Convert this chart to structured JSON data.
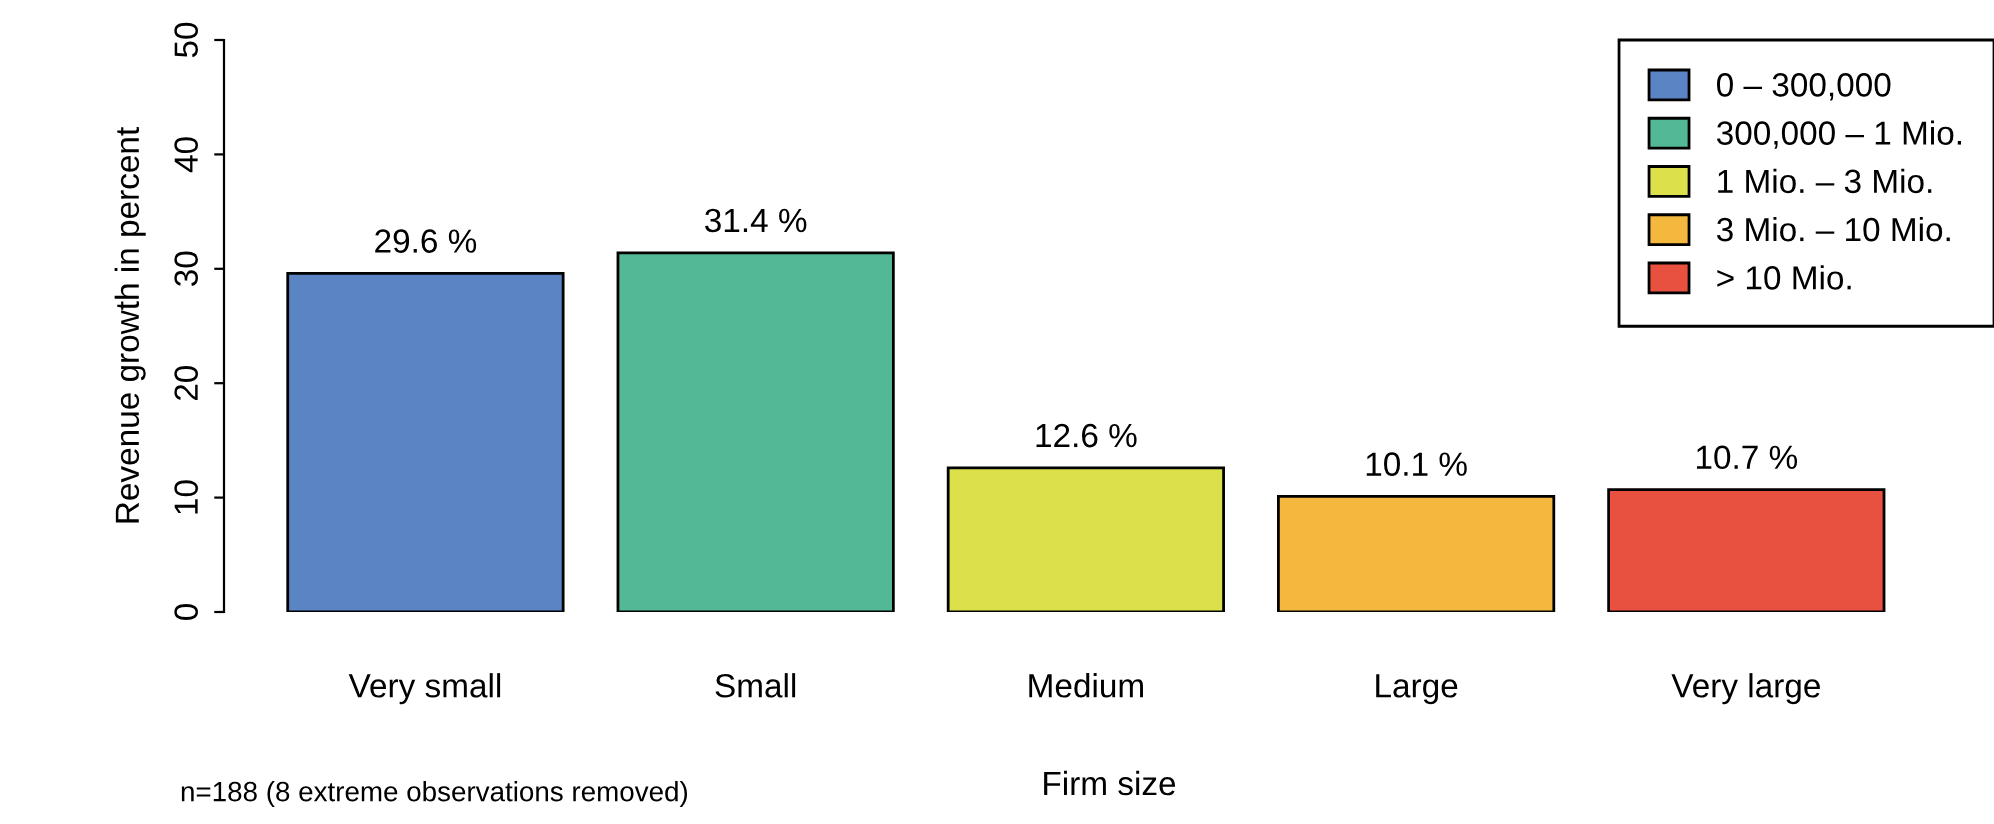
{
  "chart_data": {
    "type": "bar",
    "xlabel": "Firm size",
    "ylabel": "Revenue growth in percent",
    "categories": [
      "Very small",
      "Small",
      "Medium",
      "Large",
      "Very large"
    ],
    "series": [
      {
        "name": "0 – 300,000",
        "color": "#5b84c4",
        "values": [
          29.6,
          null,
          null,
          null,
          null
        ],
        "value_labels": [
          "29.6 %",
          null,
          null,
          null,
          null
        ]
      },
      {
        "name": "300,000 – 1 Mio.",
        "color": "#52b896",
        "values": [
          null,
          31.4,
          null,
          null,
          null
        ],
        "value_labels": [
          null,
          "31.4 %",
          null,
          null,
          null
        ]
      },
      {
        "name": "1 Mio. – 3 Mio.",
        "color": "#dce04a",
        "values": [
          null,
          null,
          12.6,
          null,
          null
        ],
        "value_labels": [
          null,
          null,
          "12.6 %",
          null,
          null
        ]
      },
      {
        "name": "3 Mio. – 10 Mio.",
        "color": "#f5b83e",
        "values": [
          null,
          null,
          null,
          10.1,
          null
        ],
        "value_labels": [
          null,
          null,
          null,
          "10.1 %",
          null
        ]
      },
      {
        "name": "> 10 Mio.",
        "color": "#e8513f",
        "values": [
          null,
          null,
          null,
          null,
          10.7
        ],
        "value_labels": [
          null,
          null,
          null,
          null,
          "10.7 %"
        ]
      }
    ],
    "ylim": [
      0,
      50
    ],
    "yticks": [
      0,
      10,
      20,
      30,
      40,
      50
    ],
    "grid": false,
    "legend": "top right",
    "annotations": [
      "n=188 (8 extreme observations removed)"
    ]
  }
}
